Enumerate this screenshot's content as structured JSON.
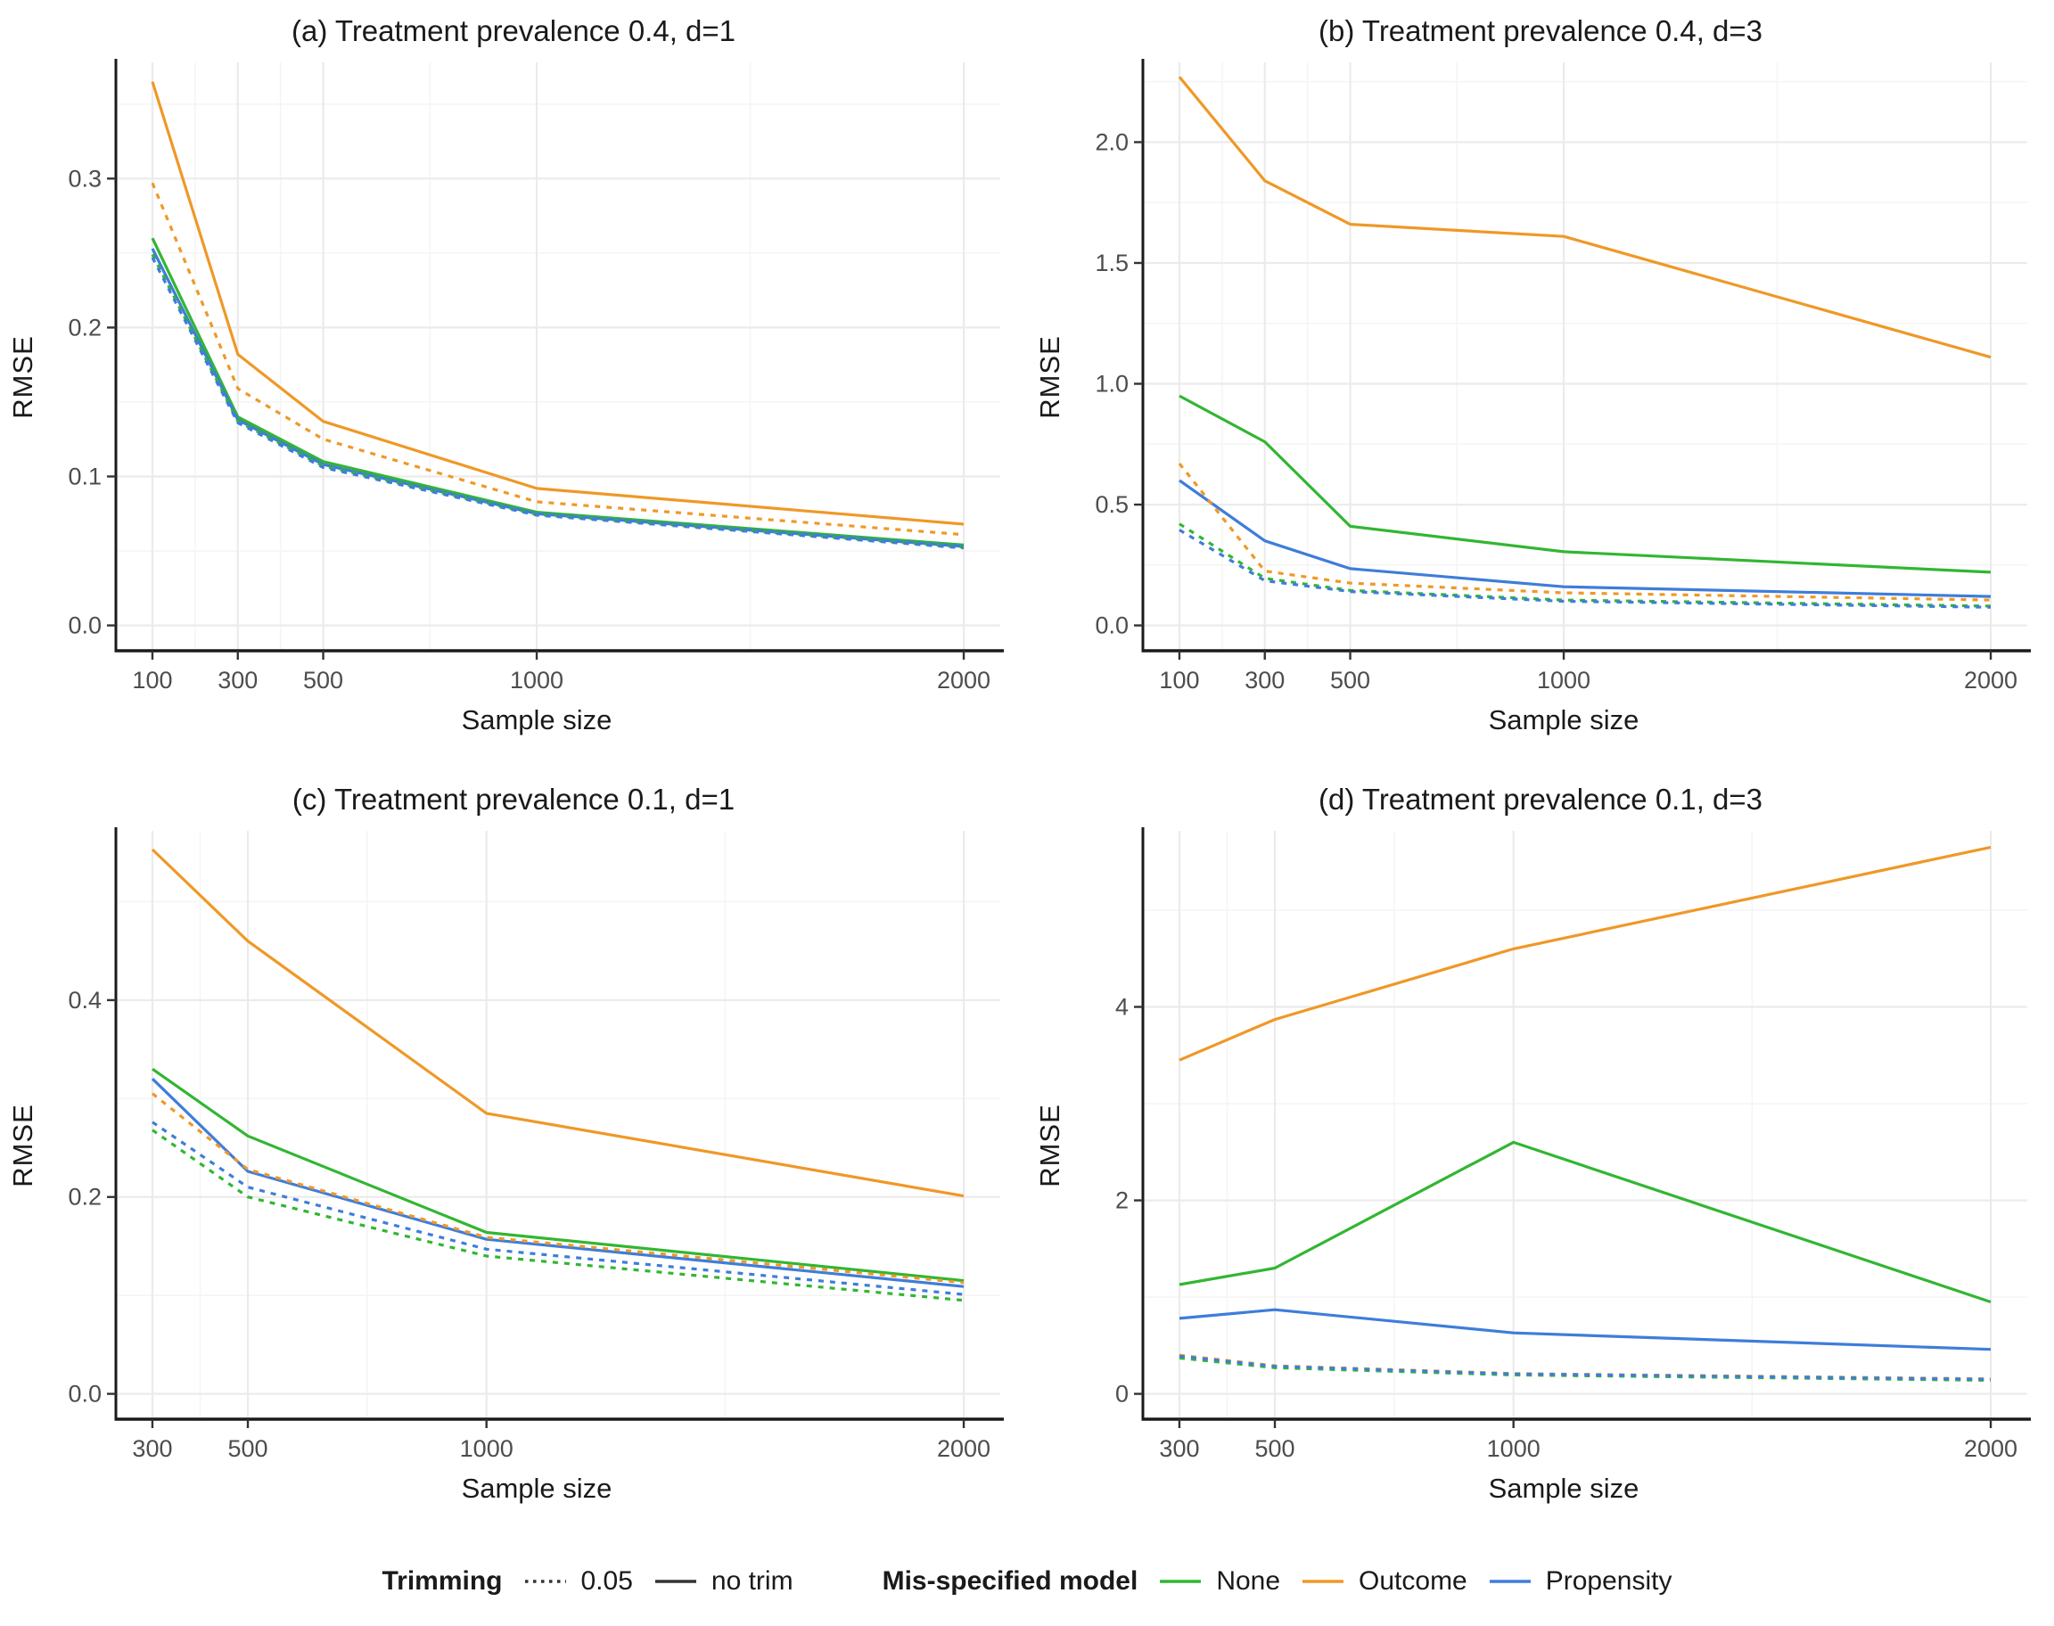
{
  "colors": {
    "none": "#32b632",
    "outcome": "#ef9827",
    "propensity": "#3e7dda",
    "legend_line": "#333333",
    "axis": "#1a1a1a",
    "tick_label": "#4d4d4d",
    "grid_major": "#ebebeb",
    "grid_minor": "#f5f5f5"
  },
  "legend": {
    "trimming": {
      "title": "Trimming",
      "items": [
        {
          "label": "0.05",
          "style": "dashed"
        },
        {
          "label": "no trim",
          "style": "solid"
        }
      ]
    },
    "model": {
      "title": "Mis-specified model",
      "items": [
        {
          "label": "None",
          "color_key": "none"
        },
        {
          "label": "Outcome",
          "color_key": "outcome"
        },
        {
          "label": "Propensity",
          "color_key": "propensity"
        }
      ]
    }
  },
  "chart_data": [
    {
      "id": "a",
      "type": "line",
      "title": "(a) Treatment prevalence 0.4, d=1",
      "xlabel": "Sample size",
      "ylabel": "RMSE",
      "x": [
        100,
        300,
        500,
        1000,
        2000
      ],
      "xtick_labels": [
        "100",
        "300",
        "500",
        "1000",
        "2000"
      ],
      "yticks": [
        0,
        0.1,
        0.2,
        0.3
      ],
      "ytick_labels": [
        "0.0",
        "0.1",
        "0.2",
        "0.3"
      ],
      "ylim": [
        0,
        0.378
      ],
      "series": [
        {
          "name": "None",
          "trim": "no trim",
          "dashed": false,
          "color_key": "none",
          "values": [
            0.26,
            0.14,
            0.11,
            0.076,
            0.054
          ]
        },
        {
          "name": "Outcome",
          "trim": "no trim",
          "dashed": false,
          "color_key": "outcome",
          "values": [
            0.365,
            0.182,
            0.137,
            0.092,
            0.068
          ]
        },
        {
          "name": "Propensity",
          "trim": "no trim",
          "dashed": false,
          "color_key": "propensity",
          "values": [
            0.253,
            0.138,
            0.108,
            0.075,
            0.053
          ]
        },
        {
          "name": "None",
          "trim": "0.05",
          "dashed": true,
          "color_key": "none",
          "values": [
            0.249,
            0.137,
            0.107,
            0.0745,
            0.0525
          ]
        },
        {
          "name": "Outcome",
          "trim": "0.05",
          "dashed": true,
          "color_key": "outcome",
          "values": [
            0.297,
            0.159,
            0.125,
            0.083,
            0.061
          ]
        },
        {
          "name": "Propensity",
          "trim": "0.05",
          "dashed": true,
          "color_key": "propensity",
          "values": [
            0.247,
            0.136,
            0.106,
            0.074,
            0.052
          ]
        }
      ]
    },
    {
      "id": "b",
      "type": "line",
      "title": "(b) Treatment prevalence 0.4, d=3",
      "xlabel": "Sample size",
      "ylabel": "RMSE",
      "x": [
        100,
        300,
        500,
        1000,
        2000
      ],
      "xtick_labels": [
        "100",
        "300",
        "500",
        "1000",
        "2000"
      ],
      "yticks": [
        0,
        0.5,
        1.0,
        1.5,
        2.0
      ],
      "ytick_labels": [
        "0.0",
        "0.5",
        "1.0",
        "1.5",
        "2.0"
      ],
      "ylim": [
        0,
        2.33
      ],
      "series": [
        {
          "name": "None",
          "trim": "no trim",
          "dashed": false,
          "color_key": "none",
          "values": [
            0.95,
            0.76,
            0.41,
            0.305,
            0.22
          ]
        },
        {
          "name": "Outcome",
          "trim": "no trim",
          "dashed": false,
          "color_key": "outcome",
          "values": [
            2.27,
            1.84,
            1.66,
            1.61,
            1.11
          ]
        },
        {
          "name": "Propensity",
          "trim": "no trim",
          "dashed": false,
          "color_key": "propensity",
          "values": [
            0.6,
            0.35,
            0.235,
            0.16,
            0.12
          ]
        },
        {
          "name": "None",
          "trim": "0.05",
          "dashed": true,
          "color_key": "none",
          "values": [
            0.42,
            0.195,
            0.145,
            0.105,
            0.08
          ]
        },
        {
          "name": "Outcome",
          "trim": "0.05",
          "dashed": true,
          "color_key": "outcome",
          "values": [
            0.67,
            0.225,
            0.175,
            0.135,
            0.105
          ]
        },
        {
          "name": "Propensity",
          "trim": "0.05",
          "dashed": true,
          "color_key": "propensity",
          "values": [
            0.395,
            0.185,
            0.14,
            0.1,
            0.075
          ]
        }
      ]
    },
    {
      "id": "c",
      "type": "line",
      "title": "(c) Treatment prevalence 0.1, d=1",
      "xlabel": "Sample size",
      "ylabel": "RMSE",
      "x": [
        300,
        500,
        1000,
        2000
      ],
      "xtick_labels": [
        "300",
        "500",
        "1000",
        "2000"
      ],
      "yticks": [
        0,
        0.2,
        0.4
      ],
      "ytick_labels": [
        "0.0",
        "0.2",
        "0.4"
      ],
      "ylim": [
        0,
        0.572
      ],
      "series": [
        {
          "name": "None",
          "trim": "no trim",
          "dashed": false,
          "color_key": "none",
          "values": [
            0.33,
            0.262,
            0.164,
            0.115
          ]
        },
        {
          "name": "Outcome",
          "trim": "no trim",
          "dashed": false,
          "color_key": "outcome",
          "values": [
            0.553,
            0.46,
            0.285,
            0.201
          ]
        },
        {
          "name": "Propensity",
          "trim": "no trim",
          "dashed": false,
          "color_key": "propensity",
          "values": [
            0.32,
            0.226,
            0.157,
            0.109
          ]
        },
        {
          "name": "None",
          "trim": "0.05",
          "dashed": true,
          "color_key": "none",
          "values": [
            0.268,
            0.2,
            0.14,
            0.095
          ]
        },
        {
          "name": "Outcome",
          "trim": "0.05",
          "dashed": true,
          "color_key": "outcome",
          "values": [
            0.305,
            0.228,
            0.159,
            0.113
          ]
        },
        {
          "name": "Propensity",
          "trim": "0.05",
          "dashed": true,
          "color_key": "propensity",
          "values": [
            0.276,
            0.21,
            0.147,
            0.101
          ]
        }
      ]
    },
    {
      "id": "d",
      "type": "line",
      "title": "(d) Treatment prevalence 0.1, d=3",
      "xlabel": "Sample size",
      "ylabel": "RMSE",
      "x": [
        300,
        500,
        1000,
        2000
      ],
      "xtick_labels": [
        "300",
        "500",
        "1000",
        "2000"
      ],
      "yticks": [
        0,
        2,
        4
      ],
      "ytick_labels": [
        "0",
        "2",
        "4"
      ],
      "ylim": [
        0,
        5.82
      ],
      "series": [
        {
          "name": "None",
          "trim": "no trim",
          "dashed": false,
          "color_key": "none",
          "values": [
            1.13,
            1.3,
            2.6,
            0.95
          ]
        },
        {
          "name": "Outcome",
          "trim": "no trim",
          "dashed": false,
          "color_key": "outcome",
          "values": [
            3.45,
            3.87,
            4.6,
            5.65
          ]
        },
        {
          "name": "Propensity",
          "trim": "no trim",
          "dashed": false,
          "color_key": "propensity",
          "values": [
            0.78,
            0.87,
            0.63,
            0.46
          ]
        },
        {
          "name": "None",
          "trim": "0.05",
          "dashed": true,
          "color_key": "none",
          "values": [
            0.37,
            0.27,
            0.195,
            0.14
          ]
        },
        {
          "name": "Outcome",
          "trim": "0.05",
          "dashed": true,
          "color_key": "outcome",
          "values": [
            0.4,
            0.29,
            0.21,
            0.155
          ]
        },
        {
          "name": "Propensity",
          "trim": "0.05",
          "dashed": true,
          "color_key": "propensity",
          "values": [
            0.39,
            0.285,
            0.205,
            0.15
          ]
        }
      ]
    }
  ]
}
